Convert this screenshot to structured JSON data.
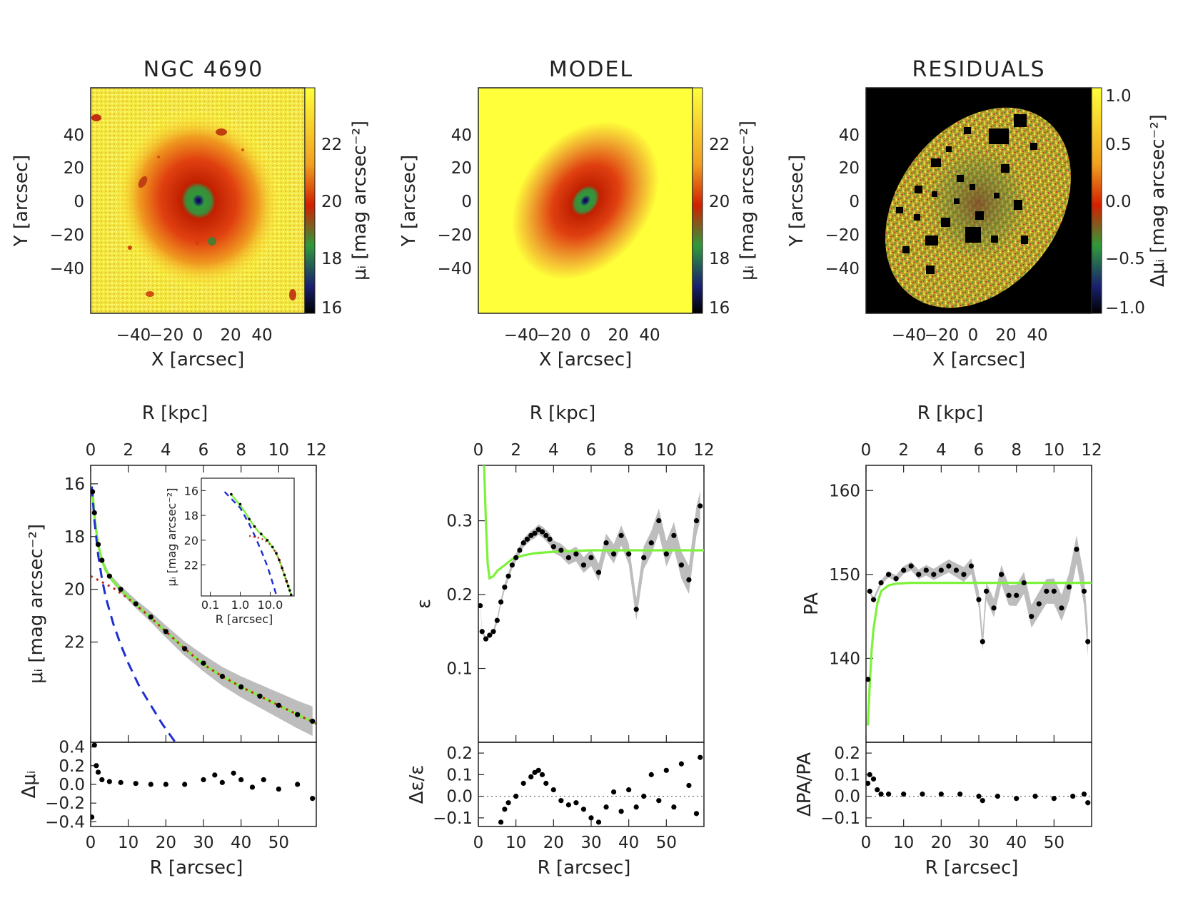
{
  "images": [
    {
      "title": "NGC 4690",
      "xlabel": "X [arcsec]",
      "ylabel": "Y [arcsec]",
      "xticks": [
        "−40",
        "−20",
        "0",
        "20",
        "40"
      ],
      "yticks": [
        "40",
        "20",
        "0",
        "−20",
        "−40"
      ],
      "cbar_ticks": [
        "22",
        "20",
        "18",
        "16"
      ],
      "cbar_label": "μᵢ [mag arcsec⁻²]",
      "colormap": [
        "#ffff3a",
        "#f0a020",
        "#d22000",
        "#2f9a3a",
        "#1a2070",
        "#000000"
      ]
    },
    {
      "title": "MODEL",
      "xlabel": "X [arcsec]",
      "ylabel": "Y [arcsec]",
      "xticks": [
        "−40",
        "−20",
        "0",
        "20",
        "40"
      ],
      "yticks": [
        "40",
        "20",
        "0",
        "−20",
        "−40"
      ],
      "cbar_ticks": [
        "22",
        "20",
        "18",
        "16"
      ],
      "cbar_label": "μᵢ [mag arcsec⁻²]"
    },
    {
      "title": "RESIDUALS",
      "xlabel": "X [arcsec]",
      "ylabel": "Y [arcsec]",
      "xticks": [
        "−40",
        "−20",
        "0",
        "20",
        "40"
      ],
      "yticks": [
        "40",
        "20",
        "0",
        "−20",
        "−40"
      ],
      "cbar_ticks": [
        "1.0",
        "0.5",
        "0.0",
        "−0.5",
        "−1.0"
      ],
      "cbar_label": "Δμᵢ [mag arcsec⁻²]"
    }
  ],
  "chart_data": [
    {
      "type": "line",
      "panel": "surface brightness profile",
      "top_axis_label": "R [kpc]",
      "top_ticks": [
        "0",
        "2",
        "4",
        "6",
        "8",
        "10",
        "12"
      ],
      "xlabel": "R [arcsec]",
      "xticks": [
        "0",
        "10",
        "20",
        "30",
        "40",
        "50"
      ],
      "ylabel": "μᵢ [mag arcsec⁻²]",
      "xlim": [
        0,
        60
      ],
      "ylim": [
        25.8,
        15.3
      ],
      "y_inverted": true,
      "yticks": [
        "16",
        "18",
        "20",
        "22"
      ],
      "series": [
        {
          "line": "green-solid",
          "color": "#7cf23a",
          "x": [
            0.5,
            1,
            1.5,
            2,
            3,
            4,
            6,
            8,
            10,
            15,
            20,
            25,
            30,
            35,
            40,
            45,
            50,
            55,
            60
          ],
          "y": [
            16.3,
            17.2,
            17.8,
            18.3,
            18.9,
            19.3,
            19.7,
            20.0,
            20.3,
            20.95,
            21.6,
            22.25,
            22.85,
            23.3,
            23.7,
            24.05,
            24.4,
            24.75,
            25.1
          ]
        },
        {
          "line": "blue-dashed",
          "color": "#1f2fd0",
          "x": [
            0.3,
            1,
            2,
            3,
            4,
            6,
            8,
            10,
            13,
            16,
            19,
            22.5
          ],
          "y": [
            16.1,
            17.4,
            18.7,
            19.6,
            20.3,
            21.3,
            22.1,
            22.8,
            23.7,
            24.4,
            25.1,
            25.8
          ]
        },
        {
          "line": "red-dotted",
          "color": "#c0281e",
          "x": [
            0,
            2,
            4,
            6,
            10,
            15,
            20,
            25,
            30,
            35,
            40,
            45,
            50,
            55,
            60
          ],
          "y": [
            19.5,
            19.65,
            19.8,
            19.95,
            20.35,
            20.95,
            21.6,
            22.25,
            22.85,
            23.3,
            23.7,
            24.05,
            24.4,
            24.75,
            25.1
          ]
        },
        {
          "line": "data",
          "color": "#000000",
          "x": [
            0.5,
            1,
            2,
            3,
            5,
            8,
            12,
            16,
            20,
            25,
            30,
            35,
            40,
            45,
            50,
            55,
            59
          ],
          "y": [
            16.3,
            17.1,
            18.3,
            18.9,
            19.5,
            20.0,
            20.55,
            21.05,
            21.6,
            22.25,
            22.8,
            23.3,
            23.7,
            24.05,
            24.4,
            24.75,
            25.0
          ]
        }
      ],
      "inset": {
        "xlabel": "R [arcsec]",
        "ylabel": "μᵢ [mag arcsec⁻²]",
        "xticks": [
          "0.1",
          "1.0",
          "10.0"
        ],
        "yticks": [
          "16",
          "18",
          "20",
          "22"
        ],
        "x_scale": "log"
      },
      "residuals": {
        "ylabel": "Δμᵢ",
        "yticks": [
          "0.4",
          "0.2",
          "0.0",
          "−0.2",
          "−0.4"
        ],
        "ylim": [
          -0.45,
          0.45
        ],
        "x": [
          0.3,
          1,
          1.5,
          2,
          3,
          5,
          8,
          12,
          16,
          20,
          25,
          30,
          33,
          35,
          38,
          40,
          43,
          46,
          50,
          55,
          59
        ],
        "y": [
          -0.35,
          0.42,
          0.2,
          0.13,
          0.05,
          0.03,
          0.02,
          0.01,
          0.0,
          0.0,
          0.0,
          0.05,
          0.1,
          0.02,
          0.12,
          0.05,
          -0.03,
          0.05,
          -0.05,
          0.0,
          -0.15
        ]
      }
    },
    {
      "type": "line",
      "panel": "ellipticity profile",
      "top_axis_label": "R [kpc]",
      "top_ticks": [
        "0",
        "2",
        "4",
        "6",
        "8",
        "10",
        "12"
      ],
      "xlabel": "R [arcsec]",
      "xticks": [
        "0",
        "10",
        "20",
        "30",
        "40",
        "50"
      ],
      "ylabel": "ε",
      "xlim": [
        0,
        60
      ],
      "ylim": [
        0.0,
        0.375
      ],
      "yticks": [
        "0.1",
        "0.2",
        "0.3"
      ],
      "series": [
        {
          "line": "green-solid",
          "color": "#7cf23a",
          "x": [
            1.5,
            2,
            2.5,
            3,
            4,
            5,
            7,
            9,
            12,
            15,
            20,
            25,
            30,
            40,
            50,
            60
          ],
          "y": [
            0.38,
            0.3,
            0.24,
            0.222,
            0.225,
            0.232,
            0.24,
            0.248,
            0.253,
            0.256,
            0.258,
            0.259,
            0.26,
            0.26,
            0.26,
            0.26
          ]
        },
        {
          "line": "data",
          "color": "#000000",
          "x": [
            0.5,
            1,
            2,
            3,
            4,
            5,
            6,
            7,
            8,
            9,
            10,
            11,
            12,
            13,
            14,
            15,
            16,
            17,
            18,
            19,
            20,
            22,
            24,
            26,
            28,
            30,
            32,
            34,
            36,
            38,
            40,
            42,
            44,
            46,
            48,
            50,
            52,
            54,
            56,
            58,
            59
          ],
          "y": [
            0.185,
            0.15,
            0.14,
            0.145,
            0.15,
            0.165,
            0.19,
            0.21,
            0.225,
            0.24,
            0.25,
            0.26,
            0.27,
            0.275,
            0.28,
            0.283,
            0.288,
            0.285,
            0.28,
            0.275,
            0.265,
            0.26,
            0.25,
            0.255,
            0.24,
            0.25,
            0.23,
            0.27,
            0.255,
            0.28,
            0.255,
            0.18,
            0.25,
            0.27,
            0.3,
            0.255,
            0.28,
            0.24,
            0.22,
            0.3,
            0.32
          ]
        }
      ],
      "residuals": {
        "ylabel": "Δε/ε",
        "yticks": [
          "0.2",
          "0.1",
          "0.0",
          "−0.1"
        ],
        "ylim": [
          -0.14,
          0.25
        ],
        "x": [
          6,
          7,
          8,
          10,
          12,
          14,
          15,
          16,
          17,
          18,
          20,
          22,
          24,
          26,
          28,
          30,
          32,
          34,
          36,
          38,
          40,
          42,
          44,
          46,
          48,
          50,
          52,
          54,
          56,
          58,
          59
        ],
        "y": [
          -0.12,
          -0.06,
          -0.03,
          0.0,
          0.06,
          0.09,
          0.11,
          0.12,
          0.1,
          0.06,
          0.03,
          -0.02,
          -0.04,
          -0.03,
          -0.06,
          -0.1,
          -0.12,
          -0.05,
          0.02,
          -0.07,
          0.03,
          -0.05,
          0.0,
          0.1,
          -0.02,
          0.12,
          -0.05,
          0.15,
          0.05,
          -0.08,
          0.18
        ]
      }
    },
    {
      "type": "line",
      "panel": "position angle profile",
      "top_axis_label": "R [kpc]",
      "top_ticks": [
        "0",
        "2",
        "4",
        "6",
        "8",
        "10",
        "12"
      ],
      "xlabel": "R [arcsec]",
      "xticks": [
        "0",
        "10",
        "20",
        "30",
        "40",
        "50"
      ],
      "ylabel": "PA",
      "xlim": [
        0,
        60
      ],
      "ylim": [
        130,
        163
      ],
      "yticks": [
        "140",
        "150",
        "160"
      ],
      "series": [
        {
          "line": "green-solid",
          "color": "#7cf23a",
          "x": [
            0.5,
            1,
            1.5,
            2,
            3,
            4,
            6,
            8,
            12,
            20,
            30,
            40,
            50,
            60
          ],
          "y": [
            132,
            137,
            141,
            143.5,
            146.5,
            148,
            148.7,
            148.9,
            149,
            149,
            149,
            149,
            149,
            149
          ]
        },
        {
          "line": "data",
          "color": "#000000",
          "x": [
            0.5,
            1,
            2,
            4,
            6,
            8,
            10,
            12,
            14,
            16,
            18,
            20,
            22,
            24,
            26,
            28,
            30,
            31,
            32,
            34,
            36,
            38,
            40,
            42,
            44,
            46,
            48,
            50,
            52,
            54,
            56,
            58,
            59
          ],
          "y": [
            137.5,
            148,
            147,
            149,
            150,
            149.5,
            150.5,
            151,
            150,
            150.5,
            150,
            150.5,
            151,
            150.5,
            150,
            151,
            147,
            142,
            148,
            146,
            150,
            147.5,
            147.5,
            149,
            145,
            146.5,
            148,
            148,
            146,
            148.5,
            153,
            148,
            142
          ]
        }
      ],
      "residuals": {
        "ylabel": "ΔPA/PA",
        "yticks": [
          "0.2",
          "0.1",
          "0.0",
          "−0.1"
        ],
        "ylim": [
          -0.14,
          0.25
        ],
        "x": [
          0.5,
          1,
          2,
          3,
          4,
          6,
          10,
          15,
          20,
          25,
          30,
          31,
          35,
          40,
          45,
          50,
          55,
          58,
          59
        ],
        "y": [
          0.06,
          0.1,
          0.08,
          0.03,
          0.01,
          0.01,
          0.01,
          0.01,
          0.01,
          0.01,
          0.0,
          -0.02,
          0.0,
          -0.01,
          0.0,
          -0.01,
          0.0,
          0.01,
          -0.03
        ]
      }
    }
  ]
}
